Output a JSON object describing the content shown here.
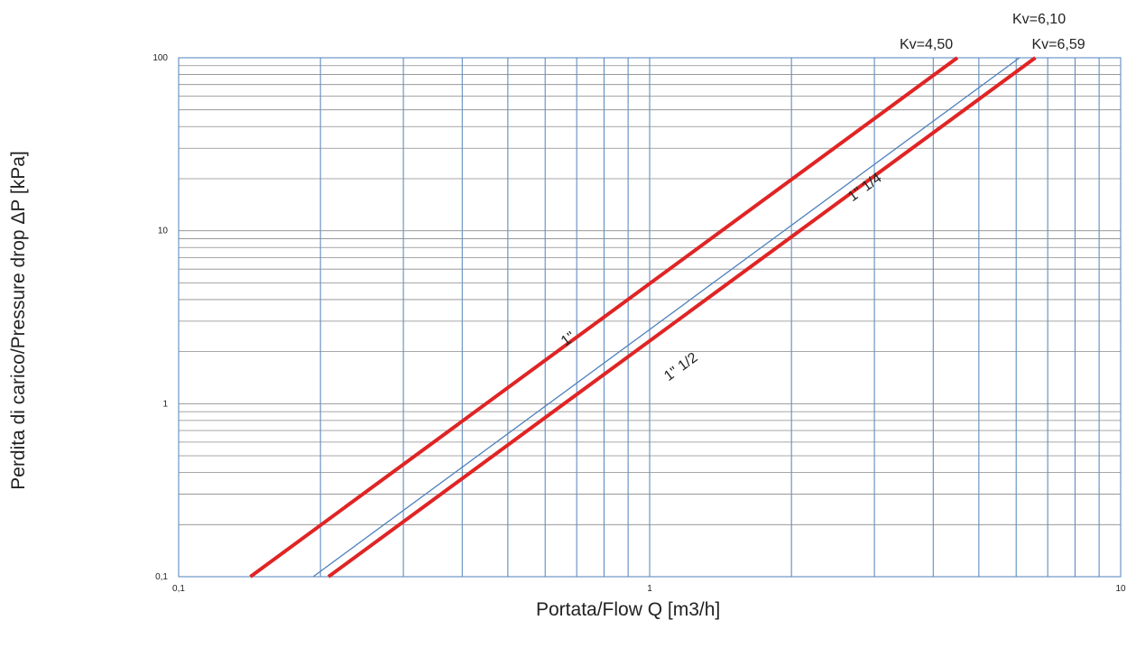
{
  "chart_data": {
    "type": "line",
    "xlabel": "Portata/Flow Q [m3/h]",
    "ylabel": "Perdita di carico/Pressure drop ΔP [kPa]",
    "x_scale": "log",
    "y_scale": "log",
    "xlim": [
      0.1,
      10
    ],
    "ylim": [
      0.1,
      100
    ],
    "x_ticks": [
      "0,1",
      "1",
      "10"
    ],
    "y_ticks": [
      "0,1",
      "1",
      "10",
      "100"
    ],
    "grid": true,
    "series": [
      {
        "name": "1\"",
        "kv_label": "Kv=4,50",
        "kv": 4.5,
        "color": "#e02424",
        "x": [
          0.142,
          4.5
        ],
        "y": [
          0.1,
          100
        ]
      },
      {
        "name": "1\" 1/4",
        "kv_label": "Kv=6,10",
        "kv": 6.1,
        "color": "#4f81bd",
        "x": [
          0.193,
          6.1
        ],
        "y": [
          0.1,
          100
        ]
      },
      {
        "name": "1\" 1/2",
        "kv_label": "Kv=6,59",
        "kv": 6.59,
        "color": "#e02424",
        "x": [
          0.208,
          6.59
        ],
        "y": [
          0.1,
          100
        ]
      }
    ]
  }
}
